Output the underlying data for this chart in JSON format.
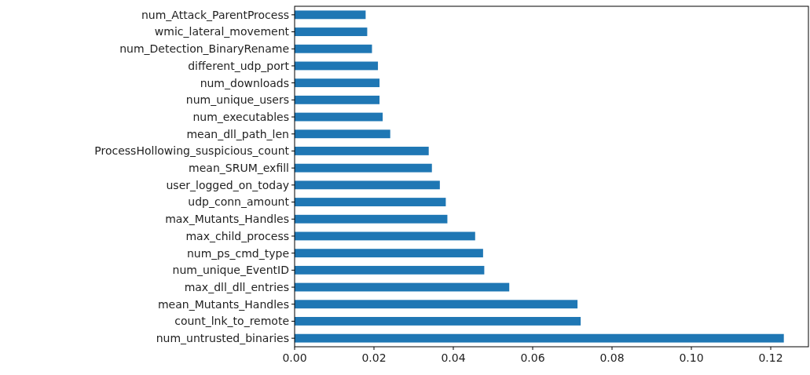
{
  "chart_data": {
    "type": "bar",
    "orientation": "horizontal",
    "color": "#1f77b4",
    "categories": [
      "num_Attack_ParentProcess",
      "wmic_lateral_movement",
      "num_Detection_BinaryRename",
      "different_udp_port",
      "num_downloads",
      "num_unique_users",
      "num_executables",
      "mean_dll_path_len",
      "ProcessHollowing_suspicious_count",
      "mean_SRUM_exfill",
      "user_logged_on_today",
      "udp_conn_amount",
      "max_Mutants_Handles",
      "max_child_process",
      "num_ps_cmd_type",
      "num_unique_EventID",
      "max_dll_dll_entries",
      "mean_Mutants_Handles",
      "count_lnk_to_remote",
      "num_untrusted_binaries"
    ],
    "values": [
      0.0179,
      0.0183,
      0.0195,
      0.021,
      0.0214,
      0.0214,
      0.0222,
      0.0241,
      0.0338,
      0.0346,
      0.0366,
      0.0381,
      0.0385,
      0.0455,
      0.0475,
      0.0478,
      0.0541,
      0.0713,
      0.0721,
      0.1233
    ],
    "xlim": [
      0,
      0.1295
    ],
    "xticks": [
      {
        "value": 0,
        "label": "0.00"
      },
      {
        "value": 0.02,
        "label": "0.02"
      },
      {
        "value": 0.04,
        "label": "0.04"
      },
      {
        "value": 0.06,
        "label": "0.06"
      },
      {
        "value": 0.08,
        "label": "0.08"
      },
      {
        "value": 0.1,
        "label": "0.10"
      },
      {
        "value": 0.12,
        "label": "0.12"
      }
    ],
    "grid": false
  }
}
